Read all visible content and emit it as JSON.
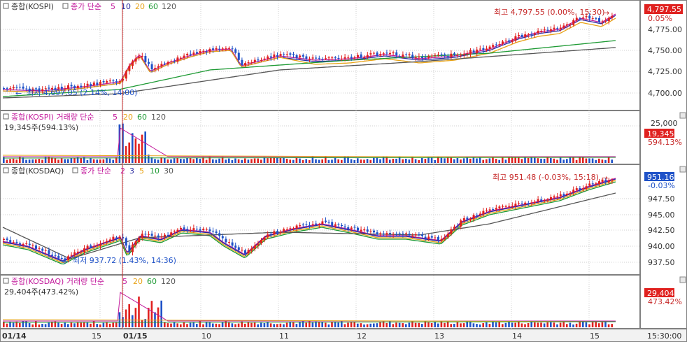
{
  "colors": {
    "up": "#e0211f",
    "down": "#1f52c8",
    "ma5": "#c2189b",
    "ma10": "#2a2aa0",
    "ma20": "#e8a317",
    "ma60": "#1e9a34",
    "ma120": "#555555",
    "cursor": "#c62828",
    "grid": "#d0d0d0",
    "border": "#808080"
  },
  "panels": {
    "kospi": {
      "title": "종합(KOSPI)",
      "ma_prefix": "종가 단순",
      "ma": [
        "5",
        "10",
        "20",
        "60",
        "120"
      ],
      "high_note": "최고 4,797.55 (0.00%, 15:30)",
      "low_note": "최저 4,697.05 (2.14%, 14:00)",
      "price_tag": "4,797.55",
      "pct_tag": "0.05%",
      "y_ticks": [
        "4,775.00",
        "4,750.00",
        "4,725.00",
        "4,700.00"
      ]
    },
    "kospi_vol": {
      "title": "종합(KOSPI) 거래량 단순",
      "ma": [
        "5",
        "20",
        "60",
        "120"
      ],
      "value_line": "19,345주(594.13%)",
      "value_tag": "19,345",
      "pct_tag": "594.13%",
      "y_ticks": [
        "25,000"
      ]
    },
    "kosdaq": {
      "title": "종합(KOSDAQ)",
      "ma_prefix": "종가 단순",
      "ma": [
        "2",
        "3",
        "5",
        "10",
        "30"
      ],
      "high_note": "최고 951.48 (-0.03%, 15:18)",
      "low_note": "최저 937.72 (1.43%, 14:36)",
      "price_tag": "951.16",
      "pct_tag": "-0.03%",
      "y_ticks": [
        "947.50",
        "945.00",
        "942.50",
        "940.00",
        "937.50"
      ]
    },
    "kosdaq_vol": {
      "title": "종합(KOSDAQ) 거래량 단순",
      "ma": [
        "5",
        "20",
        "60",
        "120"
      ],
      "value_line": "29,404주(473.42%)",
      "value_tag": "29,404",
      "pct_tag": "473.42%"
    }
  },
  "x_axis": {
    "labels": [
      "01/14",
      "15",
      "01/15",
      "10",
      "11",
      "12",
      "13",
      "14",
      "15"
    ],
    "time_readout": "15:30:00"
  }
}
